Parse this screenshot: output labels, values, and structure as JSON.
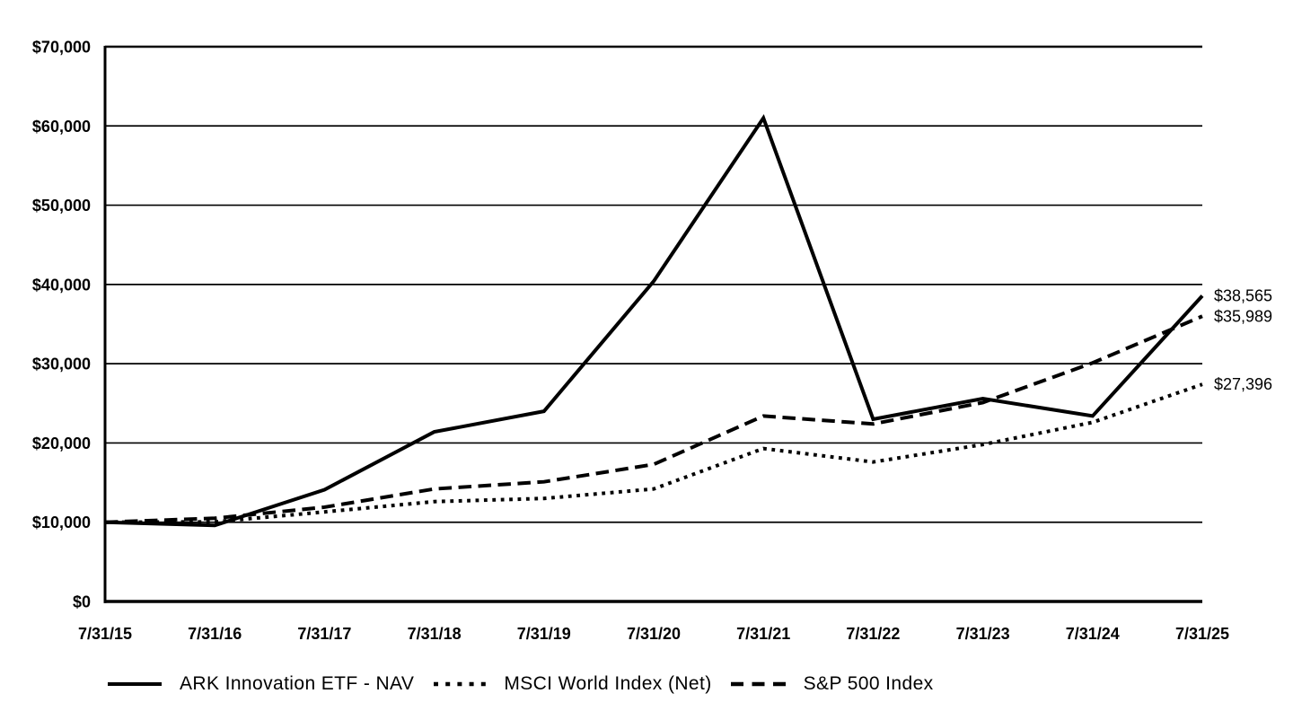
{
  "chart_data": {
    "type": "line",
    "grid": "horizontal",
    "legend_position": "bottom",
    "line_color": "#000000",
    "background_color": "#ffffff",
    "ylim": [
      0,
      70000
    ],
    "y_tick_values": [
      0,
      10000,
      20000,
      30000,
      40000,
      50000,
      60000,
      70000
    ],
    "y_tick_labels": [
      "$0",
      "$10,000",
      "$20,000",
      "$30,000",
      "$40,000",
      "$50,000",
      "$60,000",
      "$70,000"
    ],
    "x_tick_labels": [
      "7/31/15",
      "7/31/16",
      "7/31/17",
      "7/31/18",
      "7/31/19",
      "7/31/20",
      "7/31/21",
      "7/31/22",
      "7/31/23",
      "7/31/24",
      "7/31/25"
    ],
    "series": [
      {
        "name": "ARK Innovation ETF - NAV",
        "line_style": "solid",
        "color": "#000000",
        "values": [
          10000,
          9600,
          14100,
          21400,
          24000,
          40400,
          61000,
          23000,
          25600,
          23400,
          38565
        ],
        "end_label": "$38,565"
      },
      {
        "name": "MSCI World Index (Net)",
        "line_style": "dotted",
        "color": "#000000",
        "values": [
          10000,
          10050,
          11300,
          12600,
          13000,
          14200,
          19300,
          17600,
          19800,
          22600,
          27396
        ],
        "end_label": "$27,396"
      },
      {
        "name": "S&P 500 Index",
        "line_style": "dashed",
        "color": "#000000",
        "values": [
          10000,
          10500,
          11900,
          14200,
          15100,
          17300,
          23400,
          22400,
          25100,
          30100,
          35989
        ],
        "end_label": "$35,989"
      }
    ]
  }
}
